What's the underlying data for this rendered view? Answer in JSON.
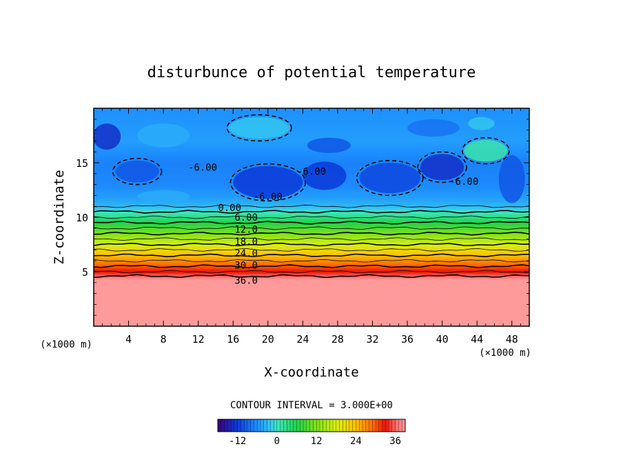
{
  "chart_data": {
    "type": "heatmap",
    "title": "disturbunce of potential temperature",
    "xlabel": "X-coordinate",
    "ylabel": "Z-coordinate",
    "x_unit_label": "(×1000 m)",
    "x_unit_label_right": "(×1000 m)",
    "xlim": [
      0,
      50
    ],
    "ylim": [
      0,
      20
    ],
    "x_ticks": [
      4,
      8,
      12,
      16,
      20,
      24,
      28,
      32,
      36,
      40,
      44,
      48
    ],
    "y_ticks": [
      5,
      10,
      15
    ],
    "contour_interval_text": "CONTOUR INTERVAL = 3.000E+00",
    "contour_interval": 3,
    "contour_labels": [
      {
        "text": "-6.00",
        "x": 12.5,
        "y": 14.6
      },
      {
        "text": "-6.00",
        "x": 20.0,
        "y": 11.9
      },
      {
        "text": "-6.00",
        "x": 25.0,
        "y": 14.2
      },
      {
        "text": "-6.00",
        "x": 42.5,
        "y": 13.3
      },
      {
        "text": "0.00",
        "x": 15.6,
        "y": 10.9
      },
      {
        "text": "6.00",
        "x": 17.5,
        "y": 10.0
      },
      {
        "text": "12.0",
        "x": 17.5,
        "y": 8.9
      },
      {
        "text": "18.0",
        "x": 17.5,
        "y": 7.8
      },
      {
        "text": "24.0",
        "x": 17.5,
        "y": 6.7
      },
      {
        "text": "30.0",
        "x": 17.5,
        "y": 5.6
      },
      {
        "text": "36.0",
        "x": 17.5,
        "y": 4.2
      }
    ],
    "profile_z": [
      0,
      4.2,
      4.6,
      5.0,
      5.5,
      6.0,
      6.5,
      7.0,
      7.5,
      8.0,
      8.5,
      9.0,
      9.5,
      10.0,
      10.5,
      11.0,
      11.8,
      13.0,
      15.0,
      17.0,
      20.0
    ],
    "profile_value": [
      40,
      39.5,
      36,
      33,
      30,
      27,
      24,
      21,
      18,
      15,
      12,
      9,
      6,
      3,
      0,
      -3,
      -5,
      -6.5,
      -7,
      -5,
      -6
    ],
    "colorbar": {
      "min": -18,
      "max": 39,
      "tick_labels": [
        "-12",
        "0",
        "12",
        "24",
        "36"
      ],
      "tick_values": [
        -12,
        0,
        12,
        24,
        36
      ]
    },
    "colormap": {
      "stops": [
        {
          "v": -18,
          "color": "#3a007a"
        },
        {
          "v": -12,
          "color": "#0b3ad8"
        },
        {
          "v": -6,
          "color": "#1e90ff"
        },
        {
          "v": -2,
          "color": "#33c6f0"
        },
        {
          "v": 0,
          "color": "#3fe6c0"
        },
        {
          "v": 6,
          "color": "#1fd24a"
        },
        {
          "v": 12,
          "color": "#7fe01a"
        },
        {
          "v": 18,
          "color": "#d6ef14"
        },
        {
          "v": 24,
          "color": "#ffc000"
        },
        {
          "v": 30,
          "color": "#ff5a00"
        },
        {
          "v": 33,
          "color": "#e81000"
        },
        {
          "v": 36,
          "color": "#ff6a6a"
        },
        {
          "v": 39,
          "color": "#ff9a9a"
        }
      ]
    }
  }
}
